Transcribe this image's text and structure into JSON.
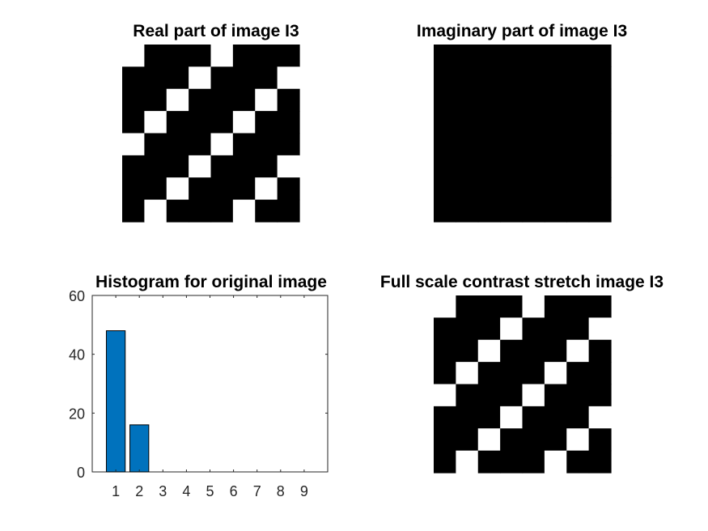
{
  "figure": {
    "panels": [
      {
        "title": "Real part of image I3"
      },
      {
        "title": "Imaginary part of image I3"
      },
      {
        "title": "Histogram for original image"
      },
      {
        "title": "Full scale contrast stretch image I3"
      }
    ]
  },
  "chart_data": [
    {
      "type": "heatmap",
      "title": "Real part of image I3",
      "colormap": "gray",
      "colors": {
        "low": "#000000",
        "high": "#ffffff"
      },
      "rows": 8,
      "cols": 8,
      "matrix": [
        [
          1,
          0,
          0,
          0,
          1,
          0,
          0,
          0
        ],
        [
          0,
          0,
          0,
          1,
          0,
          0,
          0,
          1
        ],
        [
          0,
          0,
          1,
          0,
          0,
          0,
          1,
          0
        ],
        [
          0,
          1,
          0,
          0,
          0,
          1,
          0,
          0
        ],
        [
          1,
          0,
          0,
          0,
          1,
          0,
          0,
          0
        ],
        [
          0,
          0,
          0,
          1,
          0,
          0,
          0,
          1
        ],
        [
          0,
          0,
          1,
          0,
          0,
          0,
          1,
          0
        ],
        [
          0,
          1,
          0,
          0,
          0,
          1,
          0,
          0
        ]
      ]
    },
    {
      "type": "heatmap",
      "title": "Imaginary part of image I3",
      "colormap": "gray",
      "colors": {
        "low": "#000000",
        "high": "#ffffff"
      },
      "rows": 8,
      "cols": 8,
      "matrix": [
        [
          0,
          0,
          0,
          0,
          0,
          0,
          0,
          0
        ],
        [
          0,
          0,
          0,
          0,
          0,
          0,
          0,
          0
        ],
        [
          0,
          0,
          0,
          0,
          0,
          0,
          0,
          0
        ],
        [
          0,
          0,
          0,
          0,
          0,
          0,
          0,
          0
        ],
        [
          0,
          0,
          0,
          0,
          0,
          0,
          0,
          0
        ],
        [
          0,
          0,
          0,
          0,
          0,
          0,
          0,
          0
        ],
        [
          0,
          0,
          0,
          0,
          0,
          0,
          0,
          0
        ],
        [
          0,
          0,
          0,
          0,
          0,
          0,
          0,
          0
        ]
      ]
    },
    {
      "type": "bar",
      "title": "Histogram for original image",
      "categories": [
        "1",
        "2",
        "3",
        "4",
        "5",
        "6",
        "7",
        "8",
        "9"
      ],
      "values": [
        48,
        16,
        0,
        0,
        0,
        0,
        0,
        0,
        0
      ],
      "xlim": [
        0,
        10
      ],
      "ylim": [
        0,
        60
      ],
      "yticks": [
        0,
        20,
        40,
        60
      ],
      "bar_color": "#0072BD",
      "grid": false
    },
    {
      "type": "heatmap",
      "title": "Full scale contrast stretch image I3",
      "colormap": "gray",
      "colors": {
        "low": "#000000",
        "high": "#ffffff"
      },
      "rows": 8,
      "cols": 8,
      "matrix": [
        [
          1,
          0,
          0,
          0,
          1,
          0,
          0,
          0
        ],
        [
          0,
          0,
          0,
          1,
          0,
          0,
          0,
          1
        ],
        [
          0,
          0,
          1,
          0,
          0,
          0,
          1,
          0
        ],
        [
          0,
          1,
          0,
          0,
          0,
          1,
          0,
          0
        ],
        [
          1,
          0,
          0,
          0,
          1,
          0,
          0,
          0
        ],
        [
          0,
          0,
          0,
          1,
          0,
          0,
          0,
          1
        ],
        [
          0,
          0,
          1,
          0,
          0,
          0,
          1,
          0
        ],
        [
          0,
          1,
          0,
          0,
          0,
          1,
          0,
          0
        ]
      ]
    }
  ]
}
